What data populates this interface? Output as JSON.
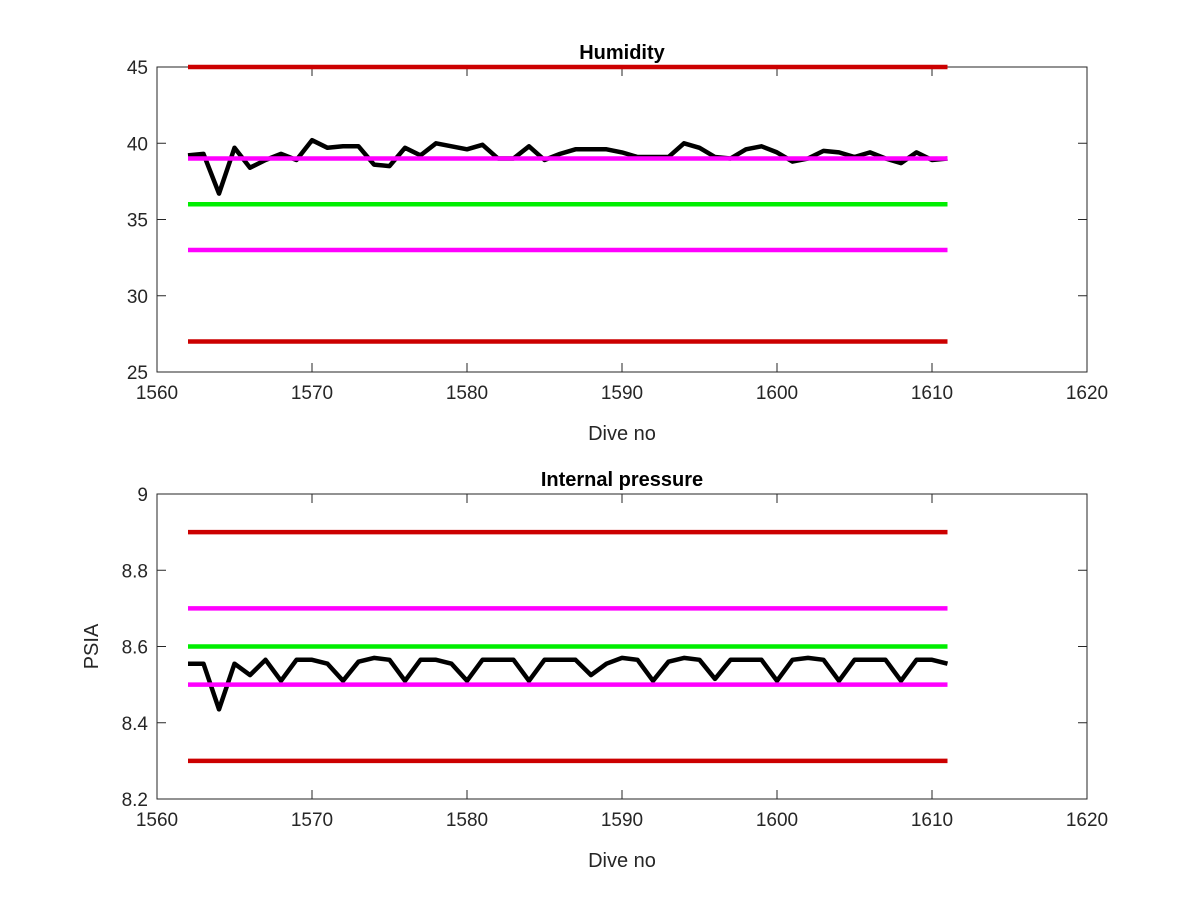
{
  "chart_data": [
    {
      "type": "line",
      "title": "Humidity",
      "xlabel": "Dive no",
      "ylabel": "",
      "xlim": [
        1560,
        1620
      ],
      "ylim": [
        25,
        45
      ],
      "xticks": [
        1560,
        1570,
        1580,
        1590,
        1600,
        1610,
        1620
      ],
      "yticks": [
        25,
        30,
        35,
        40,
        45
      ],
      "grid": false,
      "series": [
        {
          "color": "#000000",
          "x": [
            1562,
            1563,
            1564,
            1565,
            1566,
            1567,
            1568,
            1569,
            1570,
            1571,
            1572,
            1573,
            1574,
            1575,
            1576,
            1577,
            1578,
            1579,
            1580,
            1581,
            1582,
            1583,
            1584,
            1585,
            1586,
            1587,
            1588,
            1589,
            1590,
            1591,
            1592,
            1593,
            1594,
            1595,
            1596,
            1597,
            1598,
            1599,
            1600,
            1601,
            1602,
            1603,
            1604,
            1605,
            1606,
            1607,
            1608,
            1609,
            1610,
            1611
          ],
          "y": [
            39.2,
            39.3,
            36.7,
            39.7,
            38.4,
            38.9,
            39.3,
            38.9,
            40.2,
            39.7,
            39.8,
            39.8,
            38.6,
            38.5,
            39.7,
            39.2,
            40.0,
            39.8,
            39.6,
            39.9,
            39.0,
            39.0,
            39.8,
            38.9,
            39.3,
            39.6,
            39.6,
            39.6,
            39.4,
            39.1,
            39.1,
            39.1,
            40.0,
            39.7,
            39.1,
            39.0,
            39.6,
            39.8,
            39.4,
            38.8,
            39.0,
            39.5,
            39.4,
            39.1,
            39.4,
            39.0,
            38.7,
            39.4,
            38.9,
            39.0
          ]
        },
        {
          "color": "#cc0000",
          "x": [
            1562,
            1611
          ],
          "y": [
            45,
            45
          ]
        },
        {
          "color": "#cc0000",
          "x": [
            1562,
            1611
          ],
          "y": [
            27,
            27
          ]
        },
        {
          "color": "#ff00ff",
          "x": [
            1562,
            1611
          ],
          "y": [
            39,
            39
          ]
        },
        {
          "color": "#ff00ff",
          "x": [
            1562,
            1611
          ],
          "y": [
            33,
            33
          ]
        },
        {
          "color": "#00ee00",
          "x": [
            1562,
            1611
          ],
          "y": [
            36,
            36
          ]
        }
      ]
    },
    {
      "type": "line",
      "title": "Internal pressure",
      "xlabel": "Dive no",
      "ylabel": "PSIA",
      "xlim": [
        1560,
        1620
      ],
      "ylim": [
        8.2,
        9.0
      ],
      "xticks": [
        1560,
        1570,
        1580,
        1590,
        1600,
        1610,
        1620
      ],
      "yticks": [
        8.2,
        8.4,
        8.6,
        8.8,
        9.0
      ],
      "ytick_labels": [
        "8.2",
        "8.4",
        "8.6",
        "8.8",
        "9"
      ],
      "grid": false,
      "series": [
        {
          "color": "#000000",
          "x": [
            1562,
            1563,
            1564,
            1565,
            1566,
            1567,
            1568,
            1569,
            1570,
            1571,
            1572,
            1573,
            1574,
            1575,
            1576,
            1577,
            1578,
            1579,
            1580,
            1581,
            1582,
            1583,
            1584,
            1585,
            1586,
            1587,
            1588,
            1589,
            1590,
            1591,
            1592,
            1593,
            1594,
            1595,
            1596,
            1597,
            1598,
            1599,
            1600,
            1601,
            1602,
            1603,
            1604,
            1605,
            1606,
            1607,
            1608,
            1609,
            1610,
            1611
          ],
          "y": [
            8.555,
            8.555,
            8.435,
            8.555,
            8.525,
            8.565,
            8.51,
            8.565,
            8.565,
            8.555,
            8.51,
            8.56,
            8.57,
            8.565,
            8.51,
            8.565,
            8.565,
            8.555,
            8.51,
            8.565,
            8.565,
            8.565,
            8.51,
            8.565,
            8.565,
            8.565,
            8.525,
            8.555,
            8.57,
            8.565,
            8.51,
            8.56,
            8.57,
            8.565,
            8.515,
            8.565,
            8.565,
            8.565,
            8.51,
            8.565,
            8.57,
            8.565,
            8.51,
            8.565,
            8.565,
            8.565,
            8.51,
            8.565,
            8.565,
            8.555
          ]
        },
        {
          "color": "#cc0000",
          "x": [
            1562,
            1611
          ],
          "y": [
            8.9,
            8.9
          ]
        },
        {
          "color": "#cc0000",
          "x": [
            1562,
            1611
          ],
          "y": [
            8.3,
            8.3
          ]
        },
        {
          "color": "#ff00ff",
          "x": [
            1562,
            1611
          ],
          "y": [
            8.7,
            8.7
          ]
        },
        {
          "color": "#ff00ff",
          "x": [
            1562,
            1611
          ],
          "y": [
            8.5,
            8.5
          ]
        },
        {
          "color": "#00ee00",
          "x": [
            1562,
            1611
          ],
          "y": [
            8.6,
            8.6
          ]
        }
      ]
    }
  ]
}
